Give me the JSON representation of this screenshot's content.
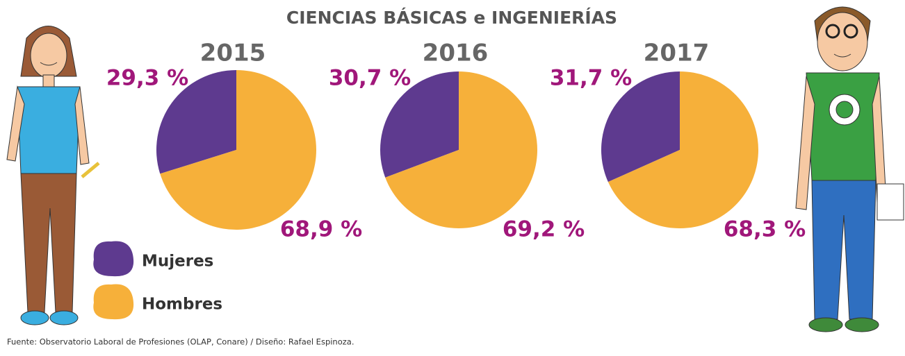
{
  "title": "CIENCIAS BÁSICAS e INGENIERÍAS",
  "source": "Fuente: Observatorio Laboral de Profesiones (OLAP, Conare) / Diseño: Rafael Espinoza.",
  "chart_data": [
    {
      "type": "pie",
      "title": "2015",
      "categories": [
        "Mujeres",
        "Hombres"
      ],
      "values": [
        29.3,
        68.9
      ],
      "value_labels": [
        "29,3 %",
        "68,9 %"
      ],
      "colors": [
        "#5e3a8f",
        "#f6b03a"
      ]
    },
    {
      "type": "pie",
      "title": "2016",
      "categories": [
        "Mujeres",
        "Hombres"
      ],
      "values": [
        30.7,
        69.2
      ],
      "value_labels": [
        "30,7 %",
        "69,2 %"
      ],
      "colors": [
        "#5e3a8f",
        "#f6b03a"
      ]
    },
    {
      "type": "pie",
      "title": "2017",
      "categories": [
        "Mujeres",
        "Hombres"
      ],
      "values": [
        31.7,
        68.3
      ],
      "value_labels": [
        "31,7 %",
        "68,3 %"
      ],
      "colors": [
        "#5e3a8f",
        "#f6b03a"
      ]
    }
  ]
}
